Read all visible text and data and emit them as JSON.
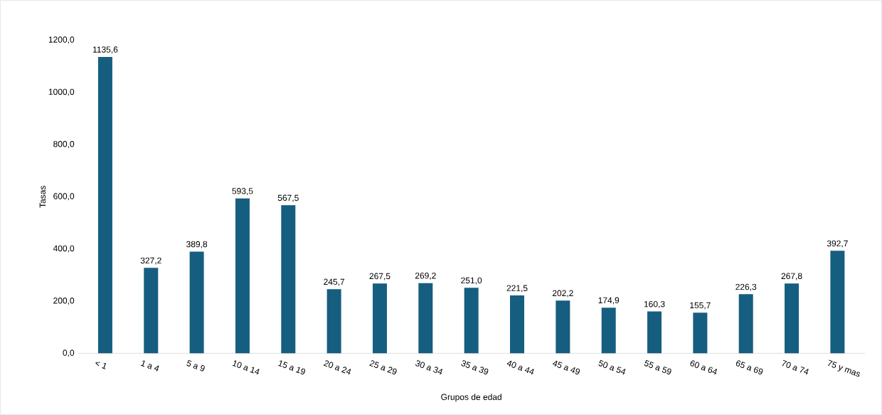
{
  "chart_data": {
    "type": "bar",
    "xlabel": "Grupos de edad",
    "ylabel": "Tasas",
    "categories": [
      "< 1",
      "1 a 4",
      "5 a 9",
      "10 a 14",
      "15 a 19",
      "20 a 24",
      "25 a 29",
      "30 a 34",
      "35 a 39",
      "40 a 44",
      "45 a 49",
      "50 a 54",
      "55 a 59",
      "60 a 64",
      "65 a 69",
      "70 a 74",
      "75 y mas"
    ],
    "values": [
      1135.6,
      327.2,
      389.8,
      593.5,
      567.5,
      245.7,
      267.5,
      269.2,
      251.0,
      221.5,
      202.2,
      174.9,
      160.3,
      155.7,
      226.3,
      267.8,
      392.7
    ],
    "value_labels": [
      "1135,6",
      "327,2",
      "389,8",
      "593,5",
      "567,5",
      "245,7",
      "267,5",
      "269,2",
      "251,0",
      "221,5",
      "202,2",
      "174,9",
      "160,3",
      "155,7",
      "226,3",
      "267,8",
      "392,7"
    ],
    "color": "#165e80",
    "ylim": [
      0,
      1200
    ],
    "yticks": [
      {
        "value": 0,
        "label": "0,0"
      },
      {
        "value": 200,
        "label": "200,0"
      },
      {
        "value": 400,
        "label": "400,0"
      },
      {
        "value": 600,
        "label": "600,0"
      },
      {
        "value": 800,
        "label": "800,0"
      },
      {
        "value": 1000,
        "label": "1000,0"
      },
      {
        "value": 1200,
        "label": "1200,0"
      }
    ],
    "grid": false
  }
}
